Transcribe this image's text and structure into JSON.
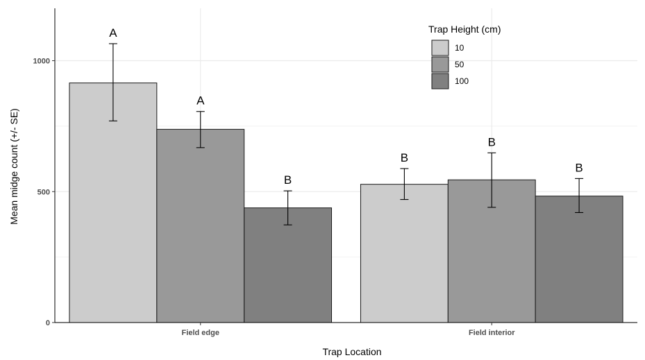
{
  "chart_data": {
    "type": "bar",
    "xlabel": "Trap Location",
    "ylabel": "Mean midge count (+/- SE)",
    "ylim": [
      0,
      1200
    ],
    "yticks": [
      0,
      500,
      1000
    ],
    "y_minor_gridlines": [
      250,
      750
    ],
    "grid": true,
    "legend": {
      "title": "Trap Height (cm)",
      "placement": "top-right-inside"
    },
    "categories": [
      "Field edge",
      "Field interior"
    ],
    "series": [
      {
        "name": "10",
        "color": "#cccccc",
        "values": [
          915,
          528
        ],
        "se_low": [
          770,
          470
        ],
        "se_high": [
          1065,
          588
        ],
        "letters": [
          "A",
          "B"
        ]
      },
      {
        "name": "50",
        "color": "#999999",
        "values": [
          738,
          545
        ],
        "se_low": [
          668,
          440
        ],
        "se_high": [
          806,
          648
        ],
        "letters": [
          "A",
          "B"
        ]
      },
      {
        "name": "100",
        "color": "#808080",
        "values": [
          438,
          483
        ],
        "se_low": [
          373,
          420
        ],
        "se_high": [
          503,
          550
        ],
        "letters": [
          "B",
          "B"
        ]
      }
    ]
  }
}
